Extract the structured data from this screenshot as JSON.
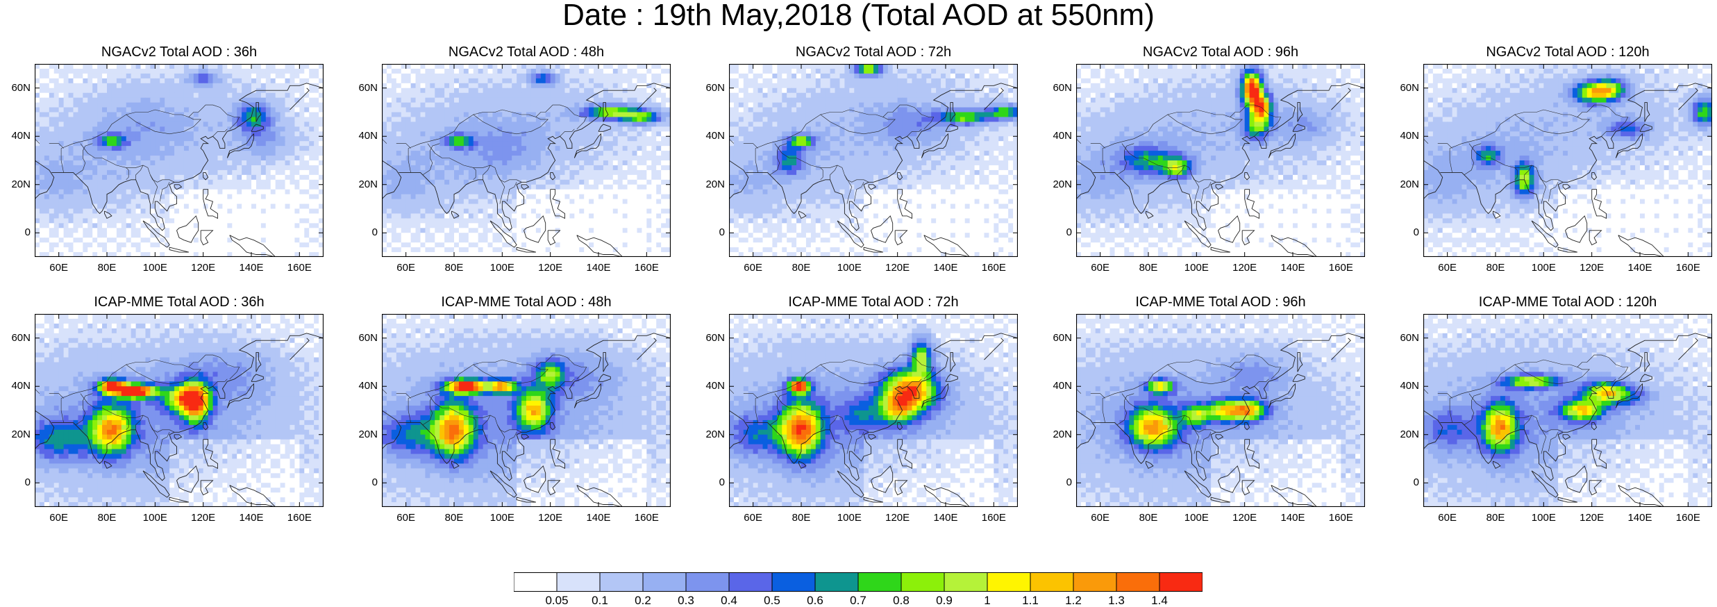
{
  "title": "Date : 19th May,2018 (Total AOD at 550nm)",
  "panels": [
    {
      "title": "NGACv2 Total AOD : 36h",
      "model": "NGACv2",
      "hour": 36
    },
    {
      "title": "NGACv2 Total AOD : 48h",
      "model": "NGACv2",
      "hour": 48
    },
    {
      "title": "NGACv2 Total AOD : 72h",
      "model": "NGACv2",
      "hour": 72
    },
    {
      "title": "NGACv2 Total AOD : 96h",
      "model": "NGACv2",
      "hour": 96
    },
    {
      "title": "NGACv2 Total AOD : 120h",
      "model": "NGACv2",
      "hour": 120
    },
    {
      "title": "ICAP-MME Total AOD : 36h",
      "model": "ICAP-MME",
      "hour": 36
    },
    {
      "title": "ICAP-MME Total AOD : 48h",
      "model": "ICAP-MME",
      "hour": 48
    },
    {
      "title": "ICAP-MME Total AOD : 72h",
      "model": "ICAP-MME",
      "hour": 72
    },
    {
      "title": "ICAP-MME Total AOD : 96h",
      "model": "ICAP-MME",
      "hour": 96
    },
    {
      "title": "ICAP-MME Total AOD : 120h",
      "model": "ICAP-MME",
      "hour": 120
    }
  ],
  "lat_ticks": [
    "60N",
    "40N",
    "20N",
    "0"
  ],
  "lon_ticks": [
    "60E",
    "80E",
    "100E",
    "120E",
    "140E",
    "160E"
  ],
  "colorbar": {
    "labels": [
      "0.05",
      "0.1",
      "0.2",
      "0.3",
      "0.4",
      "0.5",
      "0.6",
      "0.7",
      "0.8",
      "0.9",
      "1",
      "1.1",
      "1.2",
      "1.3",
      "1.4"
    ],
    "colors": [
      "#ffffff",
      "#d8e2fb",
      "#b3c6f6",
      "#97b0f2",
      "#7d94ee",
      "#5a66e8",
      "#0a5fe0",
      "#0e958f",
      "#2fd61a",
      "#8cf00a",
      "#b5f239",
      "#fff500",
      "#fcc300",
      "#fa9a0a",
      "#fa6e0a",
      "#f82a12"
    ]
  }
}
